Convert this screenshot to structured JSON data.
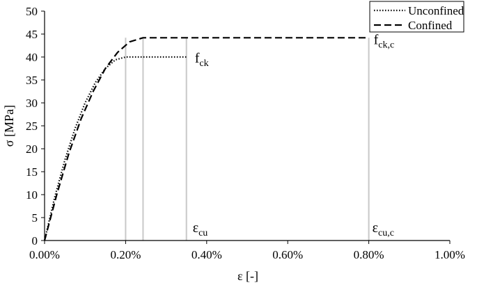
{
  "chart_data": {
    "type": "line",
    "xlabel": "ε [-]",
    "ylabel": "σ [MPa]",
    "xlim": [
      0,
      0.01
    ],
    "ylim": [
      0,
      50
    ],
    "x_tick_values": [
      0,
      0.002,
      0.004,
      0.006,
      0.008,
      0.01
    ],
    "x_tick_labels": [
      "0.00%",
      "0.20%",
      "0.40%",
      "0.60%",
      "0.80%",
      "1.00%"
    ],
    "y_tick_values": [
      0,
      5,
      10,
      15,
      20,
      25,
      30,
      35,
      40,
      45,
      50
    ],
    "y_tick_labels": [
      "0",
      "5",
      "10",
      "15",
      "20",
      "25",
      "30",
      "35",
      "40",
      "45",
      "50"
    ],
    "grid": false,
    "legend_position": "top-right",
    "series": [
      {
        "name": "Unconfined",
        "style": "dotted",
        "color": "#000000",
        "x": [
          0,
          0.00025,
          0.0005,
          0.00075,
          0.001,
          0.00125,
          0.0015,
          0.00175,
          0.002,
          0.0035
        ],
        "y": [
          0,
          9.4,
          17.5,
          24.4,
          30,
          34.4,
          37.5,
          39.4,
          40,
          40
        ]
      },
      {
        "name": "Confined",
        "style": "dashed",
        "color": "#000000",
        "x": [
          0,
          0.0003,
          0.0006,
          0.0009,
          0.0012,
          0.0015,
          0.0018,
          0.0021,
          0.00243,
          0.008
        ],
        "y": [
          0,
          10,
          19,
          26.5,
          32.5,
          37.5,
          41,
          43.3,
          44.2,
          44.2
        ]
      }
    ],
    "vertical_lines": [
      {
        "x": 0.002,
        "color": "#c8c8c8"
      },
      {
        "x": 0.00243,
        "color": "#c8c8c8"
      },
      {
        "x": 0.0035,
        "color": "#c8c8c8"
      },
      {
        "x": 0.008,
        "color": "#c8c8c8"
      }
    ],
    "annotations": [
      {
        "id": "fck",
        "main": "f",
        "sub": "ck",
        "x": 0.0035,
        "y": 40
      },
      {
        "id": "fckc",
        "main": "f",
        "sub": "ck,c",
        "x": 0.008,
        "y": 44.2
      },
      {
        "id": "ecu",
        "main": "ε",
        "sub": "cu",
        "x": 0.0035,
        "y": 0
      },
      {
        "id": "ecuc",
        "main": "ε",
        "sub": "cu,c",
        "x": 0.008,
        "y": 0
      }
    ]
  }
}
